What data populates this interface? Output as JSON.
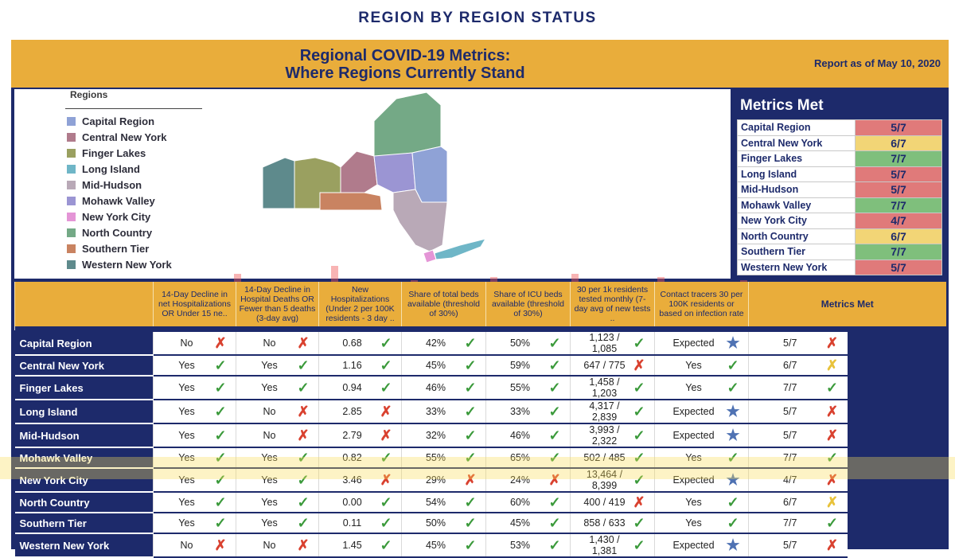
{
  "page_title": "REGION BY REGION STATUS",
  "header": {
    "title_line1": "Regional COVID-19 Metrics:",
    "title_line2": "Where Regions Currently Stand",
    "report_date": "Report as of May 10, 2020"
  },
  "legend": {
    "title": "Regions",
    "items": [
      {
        "label": "Capital Region",
        "color": "#8fa2d6"
      },
      {
        "label": "Central New York",
        "color": "#b07b8c"
      },
      {
        "label": "Finger Lakes",
        "color": "#9aa060"
      },
      {
        "label": "Long Island",
        "color": "#6fb6c7"
      },
      {
        "label": "Mid-Hudson",
        "color": "#b9a9b7"
      },
      {
        "label": "Mohawk Valley",
        "color": "#9b95d3"
      },
      {
        "label": "New York City",
        "color": "#e495d6"
      },
      {
        "label": "North Country",
        "color": "#74a986"
      },
      {
        "label": "Southern Tier",
        "color": "#c98361"
      },
      {
        "label": "Western New York",
        "color": "#5e8a8c"
      }
    ]
  },
  "metrics_met": {
    "title": "Metrics Met",
    "rows": [
      {
        "region": "Capital Region",
        "score": "5/7",
        "status": "bad"
      },
      {
        "region": "Central New York",
        "score": "6/7",
        "status": "mid"
      },
      {
        "region": "Finger Lakes",
        "score": "7/7",
        "status": "good"
      },
      {
        "region": "Long Island",
        "score": "5/7",
        "status": "bad"
      },
      {
        "region": "Mid-Hudson",
        "score": "5/7",
        "status": "bad"
      },
      {
        "region": "Mohawk Valley",
        "score": "7/7",
        "status": "good"
      },
      {
        "region": "New York City",
        "score": "4/7",
        "status": "bad"
      },
      {
        "region": "North Country",
        "score": "6/7",
        "status": "mid"
      },
      {
        "region": "Southern Tier",
        "score": "7/7",
        "status": "good"
      },
      {
        "region": "Western New York",
        "score": "5/7",
        "status": "bad"
      }
    ]
  },
  "table": {
    "headers": [
      "",
      "14-Day Decline in net Hospitalizations OR Under 15 ne..",
      "14-Day Decline in Hospital Deaths OR Fewer than 5 deaths (3-day avg)",
      "New Hospitalizations (Under 2 per 100K residents - 3 day ..",
      "Share of total beds available (threshold of 30%)",
      "Share of ICU beds available (threshold of 30%)",
      "30 per 1k residents tested monthly (7-day avg of new tests ..",
      "Contact tracers 30 per 100K residents or based on infection rate",
      "Metrics Met"
    ],
    "rows": [
      {
        "region": "Capital Region",
        "c1": "No",
        "c2": "No",
        "c3": "0.68",
        "c4": "42%",
        "c5": "50%",
        "c6": "1,123 / 1,085",
        "c7": "Expected",
        "c8": "5/7"
      },
      {
        "region": "Central New York",
        "c1": "Yes",
        "c2": "Yes",
        "c3": "1.16",
        "c4": "45%",
        "c5": "59%",
        "c6": "647 / 775",
        "c7": "Yes",
        "c8": "6/7"
      },
      {
        "region": "Finger Lakes",
        "c1": "Yes",
        "c2": "Yes",
        "c3": "0.94",
        "c4": "46%",
        "c5": "55%",
        "c6": "1,458 / 1,203",
        "c7": "Yes",
        "c8": "7/7"
      },
      {
        "region": "Long Island",
        "c1": "Yes",
        "c2": "No",
        "c3": "2.85",
        "c4": "33%",
        "c5": "33%",
        "c6": "4,317 / 2,839",
        "c7": "Expected",
        "c8": "5/7"
      },
      {
        "region": "Mid-Hudson",
        "c1": "Yes",
        "c2": "No",
        "c3": "2.79",
        "c4": "32%",
        "c5": "46%",
        "c6": "3,993 / 2,322",
        "c7": "Expected",
        "c8": "5/7"
      },
      {
        "region": "Mohawk Valley",
        "c1": "Yes",
        "c2": "Yes",
        "c3": "0.82",
        "c4": "55%",
        "c5": "65%",
        "c6": "502 / 485",
        "c7": "Yes",
        "c8": "7/7"
      },
      {
        "region": "New York City",
        "c1": "Yes",
        "c2": "Yes",
        "c3": "3.46",
        "c4": "29%",
        "c5": "24%",
        "c6": "13,464 / 8,399",
        "c7": "Expected",
        "c8": "4/7"
      },
      {
        "region": "North Country",
        "c1": "Yes",
        "c2": "Yes",
        "c3": "0.00",
        "c4": "54%",
        "c5": "60%",
        "c6": "400 / 419",
        "c7": "Yes",
        "c8": "6/7"
      },
      {
        "region": "Southern Tier",
        "c1": "Yes",
        "c2": "Yes",
        "c3": "0.11",
        "c4": "50%",
        "c5": "45%",
        "c6": "858 / 633",
        "c7": "Yes",
        "c8": "7/7"
      },
      {
        "region": "Western New York",
        "c1": "No",
        "c2": "No",
        "c3": "1.45",
        "c4": "45%",
        "c5": "53%",
        "c6": "1,430 / 1,381",
        "c7": "Expected",
        "c8": "5/7"
      }
    ]
  }
}
